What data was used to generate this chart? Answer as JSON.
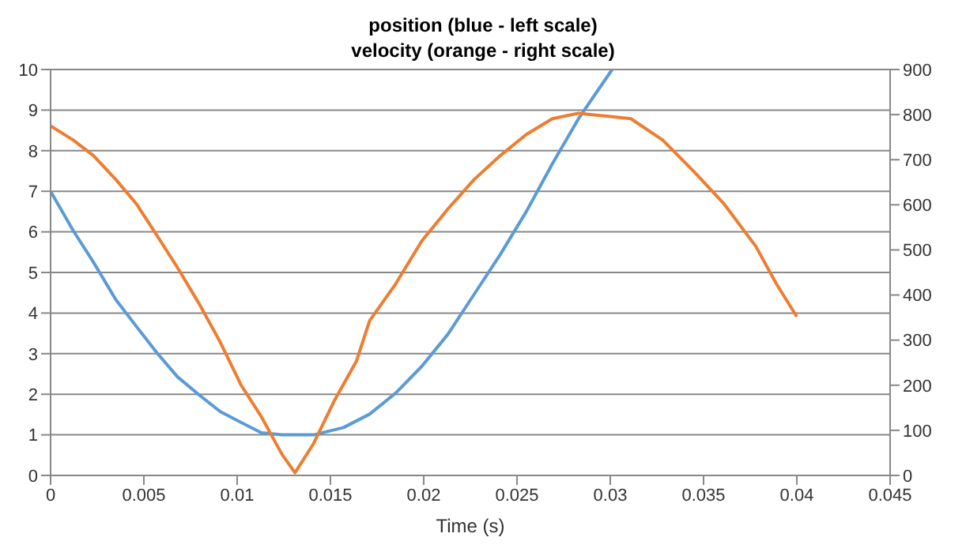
{
  "chart_data": {
    "type": "line",
    "title": "position (blue - left scale)",
    "subtitle": "velocity (orange - right scale)",
    "xlabel": "Time (s)",
    "xlim": [
      0,
      0.045
    ],
    "xticks": [
      0,
      0.005,
      0.01,
      0.015,
      0.02,
      0.025,
      0.03,
      0.035,
      0.04,
      0.045
    ],
    "ylim": [
      0,
      10
    ],
    "yticks": [
      0,
      1,
      2,
      3,
      4,
      5,
      6,
      7,
      8,
      9,
      10
    ],
    "y2lim": [
      0,
      900
    ],
    "y2ticks": [
      0,
      100,
      200,
      300,
      400,
      500,
      600,
      700,
      800,
      900
    ],
    "grid": "y",
    "legend": false,
    "marker": "none",
    "line_style": "solid",
    "series": [
      {
        "color": "#5b9bd5",
        "axis": "y",
        "x": [
          0,
          0.0012,
          0.0023,
          0.0035,
          0.0046,
          0.0057,
          0.0068,
          0.008,
          0.0091,
          0.0102,
          0.0113,
          0.0124,
          0.0141,
          0.0157,
          0.0171,
          0.0185,
          0.0199,
          0.0213,
          0.0227,
          0.0241,
          0.0255,
          0.0269,
          0.0283,
          0.0301
        ],
        "values": [
          7,
          6.04,
          5.25,
          4.33,
          3.67,
          3.02,
          2.43,
          1.97,
          1.57,
          1.31,
          1.05,
          1,
          1,
          1.18,
          1.51,
          2.03,
          2.69,
          3.48,
          4.46,
          5.44,
          6.5,
          7.68,
          8.79,
          10
        ]
      },
      {
        "color": "#ed7d31",
        "axis": "y2",
        "x": [
          0,
          0.0012,
          0.0023,
          0.0035,
          0.0046,
          0.0057,
          0.0068,
          0.008,
          0.0091,
          0.0102,
          0.0113,
          0.0124,
          0.0131,
          0.0141,
          0.0152,
          0.0164,
          0.0171,
          0.0185,
          0.0199,
          0.0213,
          0.0227,
          0.0241,
          0.0255,
          0.0269,
          0.0283,
          0.0297,
          0.0311,
          0.0328,
          0.0345,
          0.0361,
          0.0378,
          0.0389,
          0.04
        ],
        "values": [
          775,
          744,
          709,
          656,
          602,
          532,
          461,
          378,
          295,
          201,
          130,
          47,
          6,
          71,
          165,
          254,
          343,
          425,
          520,
          591,
          656,
          709,
          756,
          791,
          803,
          797,
          791,
          744,
          673,
          602,
          508,
          425,
          352
        ]
      }
    ]
  }
}
